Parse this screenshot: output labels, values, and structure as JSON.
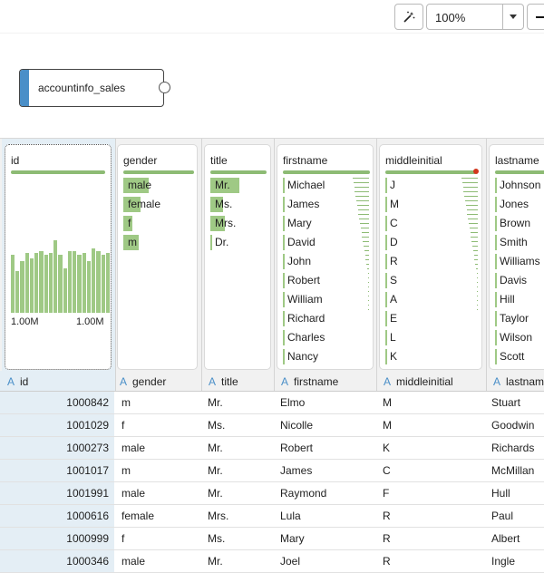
{
  "toolbar": {
    "zoom_value": "100%",
    "magic_icon": "wand-sparkle-icon"
  },
  "canvas": {
    "node_label": "accountinfo_sales"
  },
  "columns": [
    {
      "key": "id",
      "name": "id",
      "type_glyph": "A"
    },
    {
      "key": "gender",
      "name": "gender",
      "type_glyph": "A"
    },
    {
      "key": "title",
      "name": "title",
      "type_glyph": "A"
    },
    {
      "key": "firstname",
      "name": "firstname",
      "type_glyph": "A"
    },
    {
      "key": "middleinitial",
      "name": "middleinitial",
      "type_glyph": "A"
    },
    {
      "key": "lastname",
      "name": "lastname",
      "type_glyph": "A"
    }
  ],
  "profiles": {
    "id": {
      "hist_min_label": "1.00M",
      "hist_max_label": "1.00M",
      "hist_levels": [
        0.58,
        0.42,
        0.52,
        0.6,
        0.55,
        0.6,
        0.62,
        0.58,
        0.6,
        0.73,
        0.58,
        0.45,
        0.62,
        0.62,
        0.58,
        0.6,
        0.52,
        0.65,
        0.62,
        0.58,
        0.6
      ]
    },
    "gender": {
      "values": [
        {
          "label": "male",
          "share": 0.47
        },
        {
          "label": "female",
          "share": 0.31
        },
        {
          "label": "f",
          "share": 0.16
        },
        {
          "label": "m",
          "share": 0.28
        }
      ]
    },
    "title": {
      "values": [
        {
          "label": "Mr.",
          "share": 0.64
        },
        {
          "label": "Ms.",
          "share": 0.28
        },
        {
          "label": "Mrs.",
          "share": 0.32
        },
        {
          "label": "Dr.",
          "share": 0.0
        }
      ]
    },
    "firstname": {
      "values": [
        "Michael",
        "James",
        "Mary",
        "David",
        "John",
        "Robert",
        "William",
        "Richard",
        "Charles",
        "Nancy"
      ]
    },
    "middleinitial": {
      "values": [
        "J",
        "M",
        "C",
        "D",
        "R",
        "S",
        "A",
        "E",
        "L",
        "K"
      ]
    },
    "lastname": {
      "values": [
        "Johnson",
        "Jones",
        "Brown",
        "Smith",
        "Williams",
        "Davis",
        "Hill",
        "Taylor",
        "Wilson",
        "Scott"
      ]
    }
  },
  "rows": [
    {
      "id": "1000842",
      "gender": "m",
      "title": "Mr.",
      "firstname": "Elmo",
      "middleinitial": "M",
      "lastname": "Stuart"
    },
    {
      "id": "1001029",
      "gender": "f",
      "title": "Ms.",
      "firstname": "Nicolle",
      "middleinitial": "M",
      "lastname": "Goodwin"
    },
    {
      "id": "1000273",
      "gender": "male",
      "title": "Mr.",
      "firstname": "Robert",
      "middleinitial": "K",
      "lastname": "Richards"
    },
    {
      "id": "1001017",
      "gender": "m",
      "title": "Mr.",
      "firstname": "James",
      "middleinitial": "C",
      "lastname": "McMillan"
    },
    {
      "id": "1001991",
      "gender": "male",
      "title": "Mr.",
      "firstname": "Raymond",
      "middleinitial": "F",
      "lastname": "Hull"
    },
    {
      "id": "1000616",
      "gender": "female",
      "title": "Mrs.",
      "firstname": "Lula",
      "middleinitial": "R",
      "lastname": "Paul"
    },
    {
      "id": "1000999",
      "gender": "f",
      "title": "Ms.",
      "firstname": "Mary",
      "middleinitial": "R",
      "lastname": "Albert"
    },
    {
      "id": "1000346",
      "gender": "male",
      "title": "Mr.",
      "firstname": "Joel",
      "middleinitial": "R",
      "lastname": "Ingle"
    }
  ],
  "colors": {
    "accent": "#4a8fc8",
    "bar": "#9fc985",
    "selected_column": "#e4eef5",
    "warning_dot": "#d2361d"
  }
}
